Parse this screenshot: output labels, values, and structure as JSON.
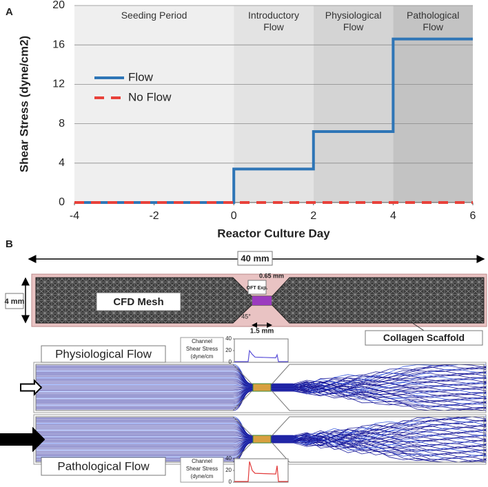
{
  "panel_a": {
    "label": "A"
  },
  "chart_data": {
    "type": "line",
    "ylabel": "Shear Stress (dyne/cm2)",
    "xlabel": "Reactor Culture Day",
    "xlim": [
      -4,
      6
    ],
    "xticks": [
      -4,
      -2,
      0,
      2,
      4,
      6
    ],
    "ylim": [
      0,
      20
    ],
    "yticks": [
      0,
      4,
      8,
      12,
      16,
      20
    ],
    "grid": true,
    "legend": "upper left",
    "regions": [
      {
        "label": "Seeding Period",
        "x": [
          -4,
          0
        ],
        "color": "#efefef"
      },
      {
        "label": "Introductory Flow",
        "x": [
          0,
          2
        ],
        "color": "#e3e3e3"
      },
      {
        "label": "Physiological Flow",
        "x": [
          2,
          4
        ],
        "color": "#d4d4d4"
      },
      {
        "label": "Pathological Flow",
        "x": [
          4,
          6
        ],
        "color": "#c3c3c3"
      }
    ],
    "series": [
      {
        "name": "Flow",
        "color": "#2e75b6",
        "x": [
          -4,
          0,
          0,
          2,
          2,
          4,
          4,
          6
        ],
        "values": [
          0,
          0,
          3.4,
          3.4,
          7.2,
          7.2,
          16.6,
          16.6
        ]
      },
      {
        "name": "No Flow",
        "color": "#e8413a",
        "dashed": true,
        "x": [
          -4,
          6
        ],
        "values": [
          0,
          0
        ]
      }
    ]
  },
  "panel_b": {
    "label": "B",
    "length": "40 mm",
    "height": "4 mm",
    "mesh": "CFD Mesh",
    "neck_width": "0.65 mm",
    "oft": "OFT Exp.",
    "angle": "45°",
    "neck_length": "1.5 mm",
    "scaffold": "Collagen Scaffold",
    "flows": [
      {
        "label": "Physiological Flow"
      },
      {
        "label": "Pathological Flow"
      }
    ],
    "insets": [
      {
        "label_lines": [
          "Channel",
          "Shear Stress",
          "(dyne/cm"
        ],
        "yticks": [
          40,
          20,
          0
        ],
        "color": "#5a4fd8"
      },
      {
        "label_lines": [
          "Channel",
          "Shear Stress",
          "(dyne/cm"
        ],
        "yticks": [
          40,
          20,
          0
        ],
        "color": "#e23a3a"
      }
    ]
  }
}
